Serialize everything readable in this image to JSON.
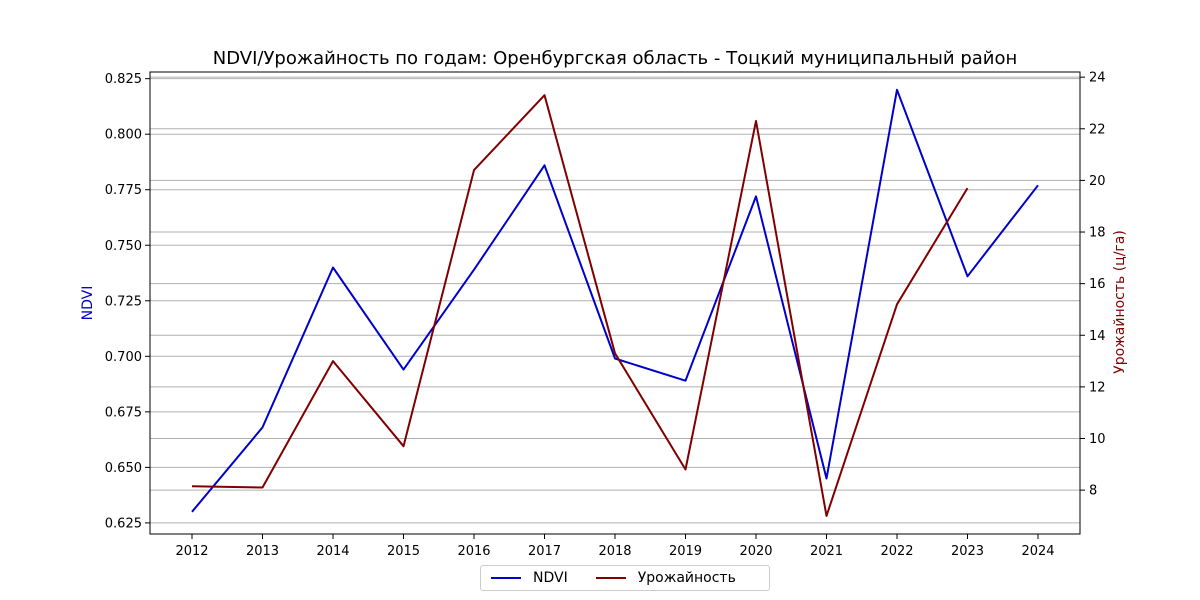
{
  "chart_data": {
    "type": "line",
    "title": "NDVI/Урожайность по годам: Оренбургская область - Тоцкий муниципальный район",
    "x": [
      "2012",
      "2013",
      "2014",
      "2015",
      "2016",
      "2017",
      "2018",
      "2019",
      "2020",
      "2021",
      "2022",
      "2023",
      "2024"
    ],
    "y_left": {
      "label": "NDVI",
      "color": "#0000cc",
      "ticks": [
        "0.625",
        "0.650",
        "0.675",
        "0.700",
        "0.725",
        "0.750",
        "0.775",
        "0.800",
        "0.825"
      ],
      "range": [
        0.62,
        0.828
      ]
    },
    "y_right": {
      "label": "Урожайность (ц/га)",
      "color": "#800000",
      "ticks": [
        "8",
        "10",
        "12",
        "14",
        "16",
        "18",
        "20",
        "22",
        "24"
      ],
      "range": [
        6.3,
        24.2
      ]
    },
    "series": [
      {
        "name": "NDVI",
        "axis": "left",
        "color": "#0000cc",
        "values": [
          0.63,
          0.668,
          0.74,
          0.694,
          0.739,
          0.786,
          0.699,
          0.689,
          0.772,
          0.645,
          0.82,
          0.736,
          0.777
        ]
      },
      {
        "name": "Урожайность",
        "axis": "right",
        "color": "#800000",
        "values": [
          8.15,
          8.1,
          13.0,
          9.7,
          20.4,
          23.3,
          13.3,
          8.8,
          22.3,
          7.0,
          15.2,
          19.7,
          null
        ]
      }
    ],
    "grid": "horizontal",
    "legend": "bottom-center"
  }
}
